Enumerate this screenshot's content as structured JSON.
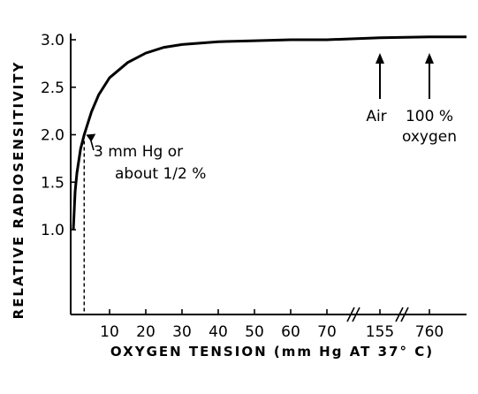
{
  "chart_data": {
    "type": "line",
    "xlabel": "OXYGEN TENSION (mm Hg AT 37° C)",
    "ylabel": "RELATIVE RADIOSENSITIVITY",
    "ylim": [
      0,
      3.0
    ],
    "yticks": [
      {
        "value": 1.0,
        "label": "1.0"
      },
      {
        "value": 1.5,
        "label": "1.5"
      },
      {
        "value": 2.0,
        "label": "2.0"
      },
      {
        "value": 2.5,
        "label": "2.5"
      },
      {
        "value": 3.0,
        "label": "3.0"
      }
    ],
    "xaxis_broken": true,
    "xticks": [
      {
        "value": 10,
        "label": "10"
      },
      {
        "value": 20,
        "label": "20"
      },
      {
        "value": 30,
        "label": "30"
      },
      {
        "value": 40,
        "label": "40"
      },
      {
        "value": 50,
        "label": "50"
      },
      {
        "value": 60,
        "label": "60"
      },
      {
        "value": 70,
        "label": "70"
      },
      {
        "value": 155,
        "label": "155"
      },
      {
        "value": 760,
        "label": "760"
      }
    ],
    "series": [
      {
        "x": [
          0,
          0.5,
          1,
          2,
          3,
          4,
          5,
          7,
          10,
          15,
          20,
          25,
          30,
          40,
          50,
          60,
          70,
          155,
          760
        ],
        "y": [
          1.0,
          1.4,
          1.6,
          1.85,
          2.0,
          2.12,
          2.24,
          2.42,
          2.6,
          2.76,
          2.86,
          2.92,
          2.95,
          2.98,
          2.99,
          3.0,
          3.0,
          3.02,
          3.03
        ]
      }
    ],
    "annotations": {
      "point": {
        "line1": "3 mm Hg or",
        "line2": "about 1/2 %",
        "x": 3,
        "y": 2.0
      },
      "air": {
        "label": "Air",
        "x": 155
      },
      "oxygen": {
        "line1": "100 %",
        "line2": "oxygen",
        "x": 760
      }
    }
  }
}
